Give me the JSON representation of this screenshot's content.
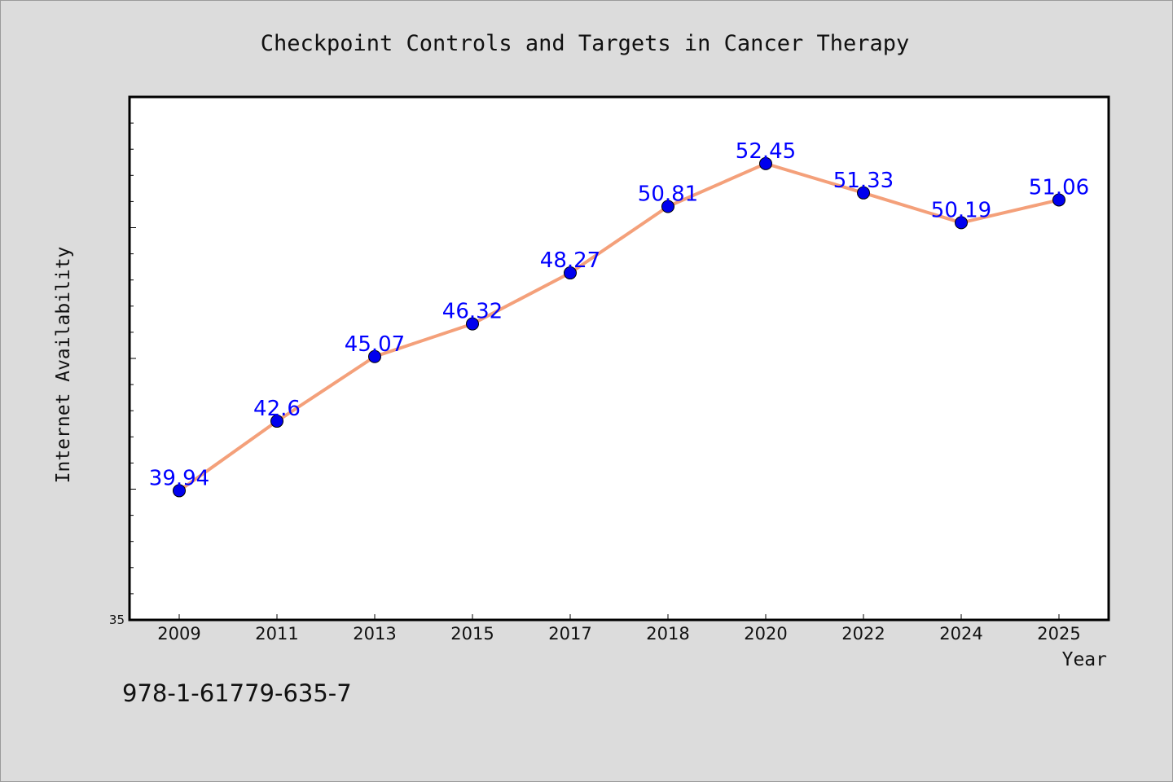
{
  "chart_data": {
    "type": "line",
    "title": "Checkpoint Controls and Targets in Cancer Therapy",
    "xlabel": "Year",
    "ylabel": "Internet Availability",
    "categories": [
      "2009",
      "2011",
      "2013",
      "2015",
      "2017",
      "2018",
      "2020",
      "2022",
      "2024",
      "2025"
    ],
    "series": [
      {
        "values": [
          39.94,
          42.6,
          45.07,
          46.32,
          48.27,
          50.81,
          52.45,
          51.33,
          50.19,
          51.06
        ],
        "labels": [
          "39.94",
          "42.6",
          "45.07",
          "46.32",
          "48.27",
          "50.81",
          "52.45",
          "51.33",
          "50.19",
          "51.06"
        ],
        "line_color": "#f4a07a",
        "marker_color": "#0000ee",
        "label_color": "#0000ff"
      }
    ],
    "ylim": [
      35,
      55
    ],
    "y_tick_labels": [
      "35"
    ],
    "y_minor_step": 1,
    "grid": false,
    "legend": "none"
  },
  "footer": {
    "isbn": "978-1-61779-635-7"
  },
  "colors": {
    "background": "#dcdcdc",
    "plot_background": "#ffffff"
  }
}
